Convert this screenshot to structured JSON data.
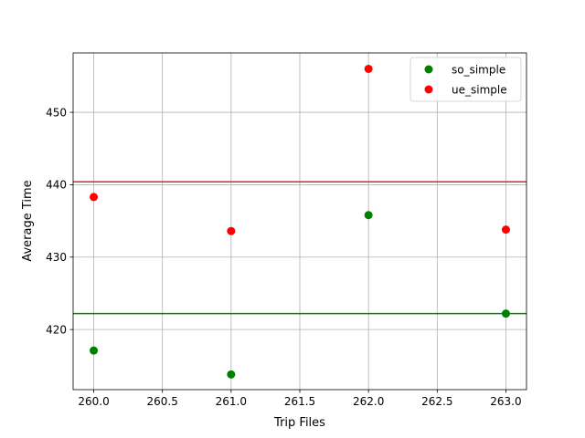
{
  "chart_data": {
    "type": "scatter",
    "title": "",
    "xlabel": "Trip Files",
    "ylabel": "Average Time",
    "xlim": [
      259.85,
      263.15
    ],
    "ylim": [
      411.7,
      458.2
    ],
    "xticks": [
      260.0,
      260.5,
      261.0,
      261.5,
      262.0,
      262.5,
      263.0
    ],
    "xtick_labels": [
      "260.0",
      "260.5",
      "261.0",
      "261.5",
      "262.0",
      "262.5",
      "263.0"
    ],
    "yticks": [
      420,
      430,
      440,
      450
    ],
    "ytick_labels": [
      "420",
      "430",
      "440",
      "450"
    ],
    "grid": true,
    "legend_position": "top-right",
    "series": [
      {
        "name": "so_simple",
        "color": "#008000",
        "points": [
          {
            "x": 260,
            "y": 417.1
          },
          {
            "x": 261,
            "y": 413.8
          },
          {
            "x": 262,
            "y": 435.8
          },
          {
            "x": 263,
            "y": 422.2
          }
        ],
        "mean": 422.2
      },
      {
        "name": "ue_simple",
        "color": "#ff0000",
        "points": [
          {
            "x": 260,
            "y": 438.3
          },
          {
            "x": 261,
            "y": 433.6
          },
          {
            "x": 262,
            "y": 456.0
          },
          {
            "x": 263,
            "y": 433.8
          }
        ],
        "mean": 440.4
      }
    ],
    "mean_lines": [
      {
        "series": "so_simple",
        "y": 422.2,
        "color": "#008000"
      },
      {
        "series": "ue_simple",
        "y": 440.4,
        "color": "#d62728"
      }
    ]
  }
}
